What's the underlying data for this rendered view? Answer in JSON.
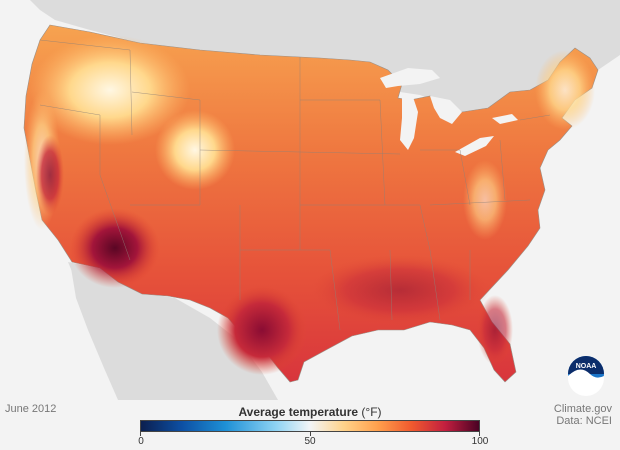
{
  "map": {
    "date_label": "June 2012",
    "legend": {
      "title": "Average temperature",
      "unit": "(°F)",
      "min_label": "0",
      "mid_label": "50",
      "max_label": "100"
    },
    "credits": {
      "site": "Climate.gov",
      "data": "Data: NCEI"
    },
    "logo_text": "NOAA",
    "colors": {
      "background": "#f3f3f3",
      "land_outside": "#dcdcdc",
      "hot": "#c21f3f",
      "warm": "#f05a2e",
      "mild": "#ffa04d",
      "cool": "#ffd38a",
      "extreme": "#6e0a2a"
    }
  }
}
